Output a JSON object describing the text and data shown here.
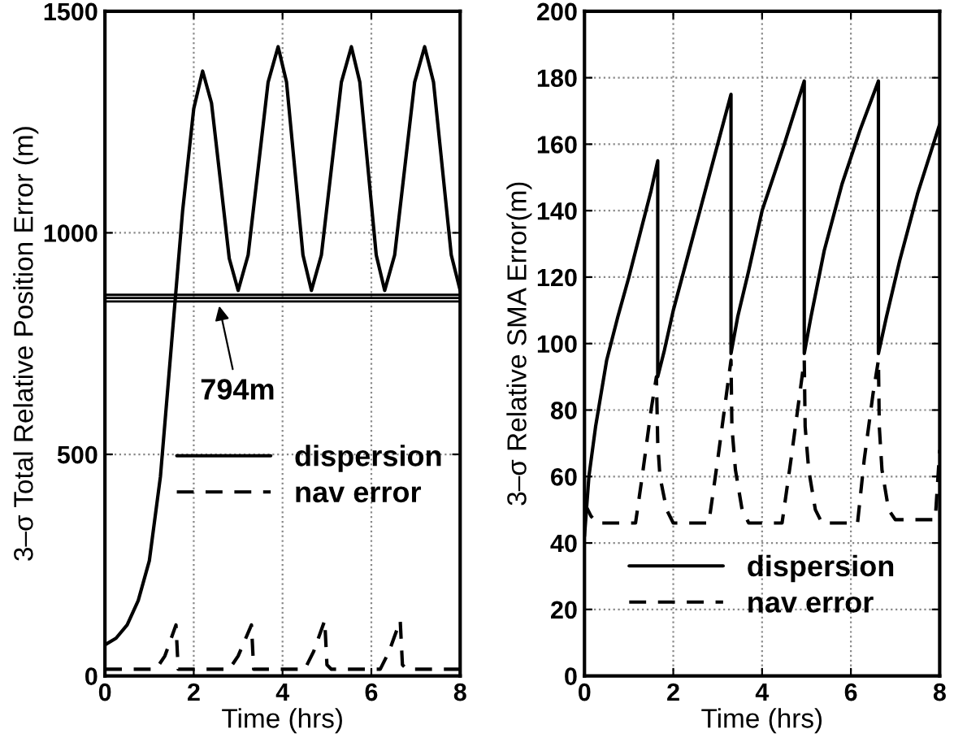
{
  "chart_data": [
    {
      "type": "line",
      "xlabel": "Time (hrs)",
      "ylabel": "3–σ Total Relative Position Error (m)",
      "xlim": [
        0,
        8
      ],
      "ylim": [
        0,
        1500
      ],
      "xticks": [
        0,
        2,
        4,
        6,
        8
      ],
      "yticks": [
        0,
        500,
        1000,
        1500
      ],
      "grid": true,
      "legend": "right",
      "series": [
        {
          "name": "dispersion",
          "color": "#000000",
          "line_style": "solid",
          "x": [
            0,
            0.25,
            0.5,
            0.75,
            1,
            1.25,
            1.5,
            1.75,
            2,
            2.2,
            2.4,
            2.6,
            2.8,
            3.0,
            3.225,
            3.45,
            3.675,
            3.9,
            4.09,
            4.275,
            4.46,
            4.65,
            4.875,
            5.1,
            5.325,
            5.55,
            5.74,
            5.925,
            6.11,
            6.3,
            6.525,
            6.75,
            6.975,
            7.2,
            7.4,
            7.6,
            7.8,
            8.0
          ],
          "values": [
            70,
            85,
            115,
            170,
            260,
            450,
            750,
            1050,
            1280,
            1365,
            1293,
            1118,
            942,
            870,
            950,
            1145,
            1340,
            1420,
            1340,
            1145,
            950,
            870,
            950,
            1145,
            1340,
            1420,
            1340,
            1145,
            950,
            870,
            950,
            1145,
            1340,
            1420,
            1340,
            1145,
            950,
            870
          ]
        },
        {
          "name": "nav error",
          "color": "#000000",
          "line_style": "dashed",
          "x": [
            0,
            1.15,
            1.35,
            1.6,
            1.65,
            1.75,
            2.8,
            3.0,
            3.3,
            3.35,
            3.45,
            4.5,
            4.7,
            4.95,
            5.0,
            5.1,
            6.2,
            6.4,
            6.65,
            6.7,
            6.8,
            8.0
          ],
          "values": [
            15,
            15,
            45,
            115,
            15,
            15,
            15,
            45,
            115,
            15,
            15,
            15,
            55,
            125,
            25,
            15,
            15,
            55,
            125,
            25,
            15,
            15
          ]
        }
      ],
      "ref_lines": [
        {
          "axis": "y",
          "value": 860,
          "color": "#000000"
        },
        {
          "axis": "y",
          "value": 853,
          "color": "#000000"
        },
        {
          "axis": "y",
          "value": 845,
          "color": "#000000"
        }
      ],
      "annotations": [
        {
          "text": "794m",
          "x": 2.55,
          "y": 845
        }
      ]
    },
    {
      "type": "line",
      "xlabel": "Time (hrs)",
      "ylabel": "3–σ Relative SMA Error(m)",
      "xlim": [
        0,
        8
      ],
      "ylim": [
        0,
        200
      ],
      "xticks": [
        0,
        2,
        4,
        6,
        8
      ],
      "yticks": [
        0,
        20,
        40,
        60,
        80,
        100,
        120,
        140,
        160,
        180,
        200
      ],
      "grid": true,
      "legend": "bottom",
      "series": [
        {
          "name": "dispersion",
          "color": "#000000",
          "line_style": "solid",
          "x": [
            0,
            0.1,
            0.25,
            0.5,
            0.75,
            1,
            1.25,
            1.5,
            1.65,
            1.65,
            1.8,
            2,
            2.5,
            3,
            3.3,
            3.3,
            3.45,
            3.7,
            4,
            4.5,
            4.95,
            4.95,
            5.1,
            5.4,
            5.8,
            6.2,
            6.62,
            6.62,
            6.8,
            7.1,
            7.5,
            8
          ],
          "values": [
            42,
            60,
            75,
            95,
            108,
            120,
            133,
            146,
            155,
            90,
            98,
            110,
            135,
            160,
            175,
            97,
            108,
            122,
            140,
            160,
            179,
            97,
            108,
            128,
            148,
            164,
            179,
            97,
            108,
            125,
            145,
            166
          ]
        },
        {
          "name": "nav error",
          "color": "#000000",
          "line_style": "dashed",
          "x": [
            0,
            0.15,
            0.3,
            1.15,
            1.3,
            1.5,
            1.62,
            1.65,
            1.7,
            1.85,
            2.0,
            2.8,
            3.0,
            3.2,
            3.3,
            3.32,
            3.4,
            3.55,
            3.7,
            4.45,
            4.65,
            4.85,
            4.95,
            4.97,
            5.05,
            5.2,
            5.35,
            6.15,
            6.3,
            6.5,
            6.62,
            6.64,
            6.7,
            6.85,
            7.0,
            7.9,
            8.0
          ],
          "values": [
            52,
            48,
            46,
            46,
            60,
            80,
            90,
            70,
            60,
            50,
            46,
            46,
            65,
            85,
            95,
            75,
            62,
            50,
            46,
            46,
            65,
            85,
            95,
            75,
            62,
            50,
            46,
            46,
            65,
            85,
            95,
            75,
            62,
            50,
            47,
            47,
            68
          ]
        }
      ]
    }
  ]
}
